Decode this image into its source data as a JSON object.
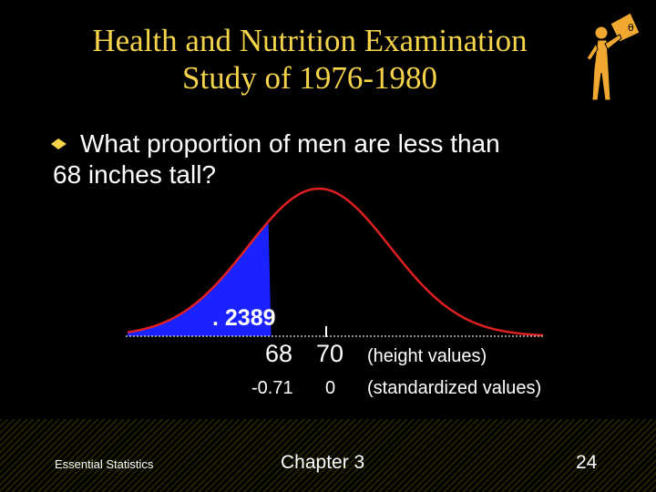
{
  "slide": {
    "title_line1": "Health and Nutrition Examination",
    "title_line2": "Study of 1976-1980",
    "bullet_line1": "What proportion of men are less than",
    "bullet_line2": "68 inches tall?",
    "logo_icon": "figure-holding-sign-icon",
    "bullet_icon": "bullet-marker-icon"
  },
  "diagram": {
    "shaded_area_label": ". 2389",
    "height_values": [
      "68",
      "70"
    ],
    "height_values_caption": "(height values)",
    "standardized_values": [
      "-0.71",
      "0"
    ],
    "standardized_values_caption": "(standardized values)",
    "curve_color": "#e02020",
    "shade_color": "#1a22ff",
    "title_color": "#f5d44a"
  },
  "footer": {
    "left": "Essential Statistics",
    "center": "Chapter 3",
    "right": "24"
  }
}
